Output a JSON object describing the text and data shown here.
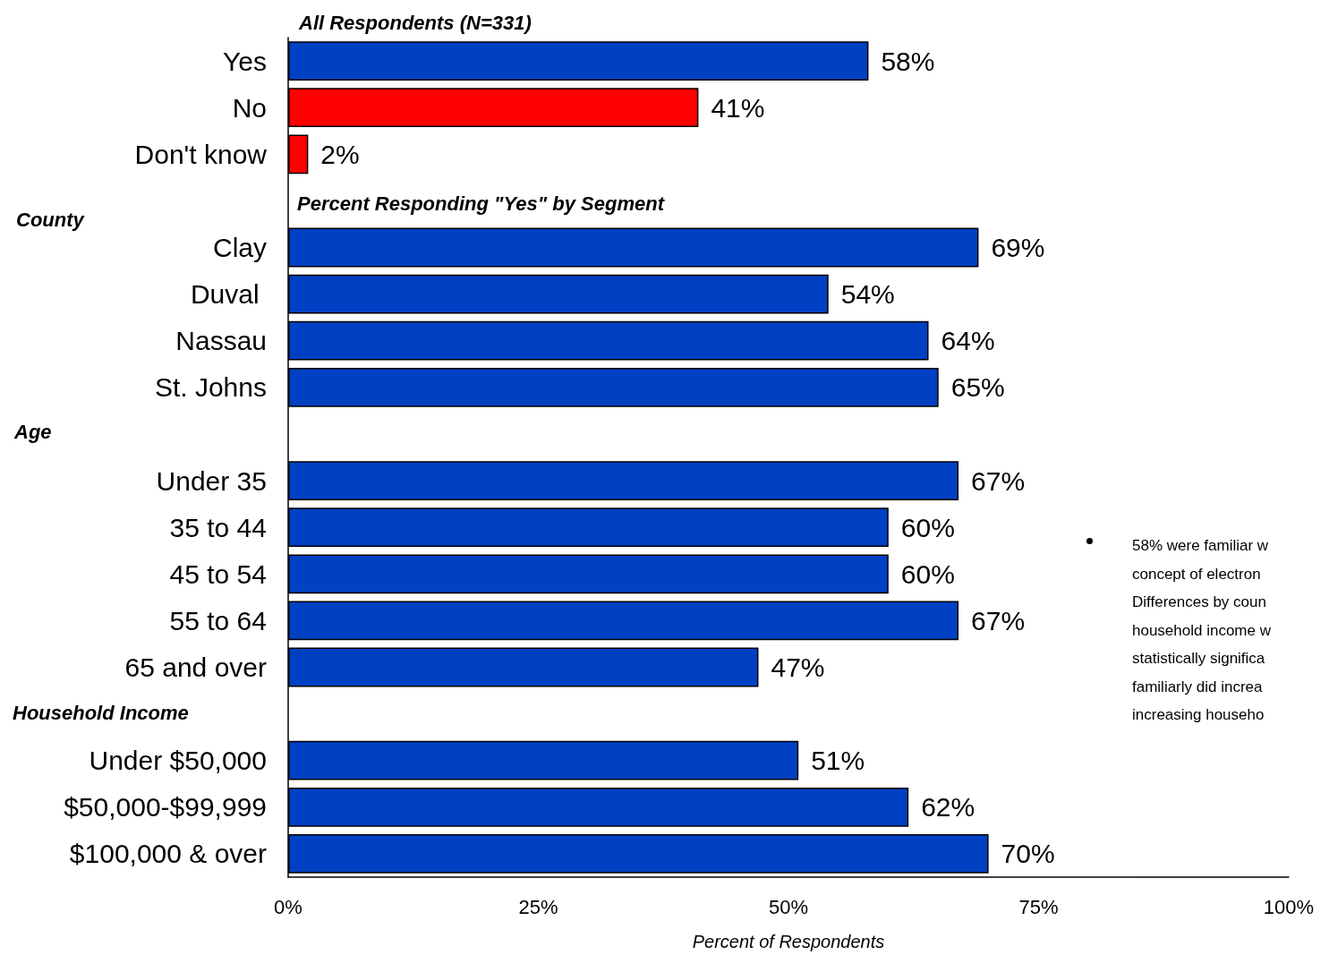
{
  "chart_data": {
    "type": "bar",
    "orientation": "horizontal",
    "xlabel": "Percent of Respondents",
    "categories": [
      "Yes",
      "No",
      "Don't know",
      null,
      "Clay",
      "Duval ",
      "Nassau",
      "St. Johns",
      null,
      "Under 35",
      "35 to 44",
      "45 to 54",
      "55 to 64",
      "65 and over",
      null,
      "Under $50,000",
      "$50,000-$99,999",
      "$100,000 & over"
    ],
    "values": [
      58,
      41,
      2,
      null,
      69,
      54,
      64,
      65,
      null,
      67,
      60,
      60,
      67,
      47,
      null,
      51,
      62,
      70
    ],
    "value_labels": [
      "58%",
      "41%",
      "2%",
      null,
      "69%",
      "54%",
      "64%",
      "65%",
      null,
      "67%",
      "60%",
      "60%",
      "67%",
      "47%",
      null,
      "51%",
      "62%",
      "70%"
    ],
    "colors": [
      "#0041c3",
      "#ff0000",
      "#ff0000",
      null,
      "#0041c3",
      "#0041c3",
      "#0041c3",
      "#0041c3",
      null,
      "#0041c3",
      "#0041c3",
      "#0041c3",
      "#0041c3",
      "#0041c3",
      null,
      "#0041c3",
      "#0041c3",
      "#0041c3"
    ],
    "xlim": [
      0,
      100
    ],
    "xticks": [
      {
        "value": 0,
        "label": "0%"
      },
      {
        "value": 25,
        "label": "25%"
      },
      {
        "value": 50,
        "label": "50%"
      },
      {
        "value": 75,
        "label": "75%"
      },
      {
        "value": 100,
        "label": "100%"
      }
    ],
    "grid": false,
    "annotations": [
      "All Respondents (N=331)",
      "Percent Responding \"Yes\" by Segment",
      "County",
      "Age",
      "Household Income",
      "58% were familiar w\nconcept of electron\nDifferences by coun\nhousehold income w\nstatistically significa\nfamiliarly did increa\nincreasing househo"
    ]
  }
}
